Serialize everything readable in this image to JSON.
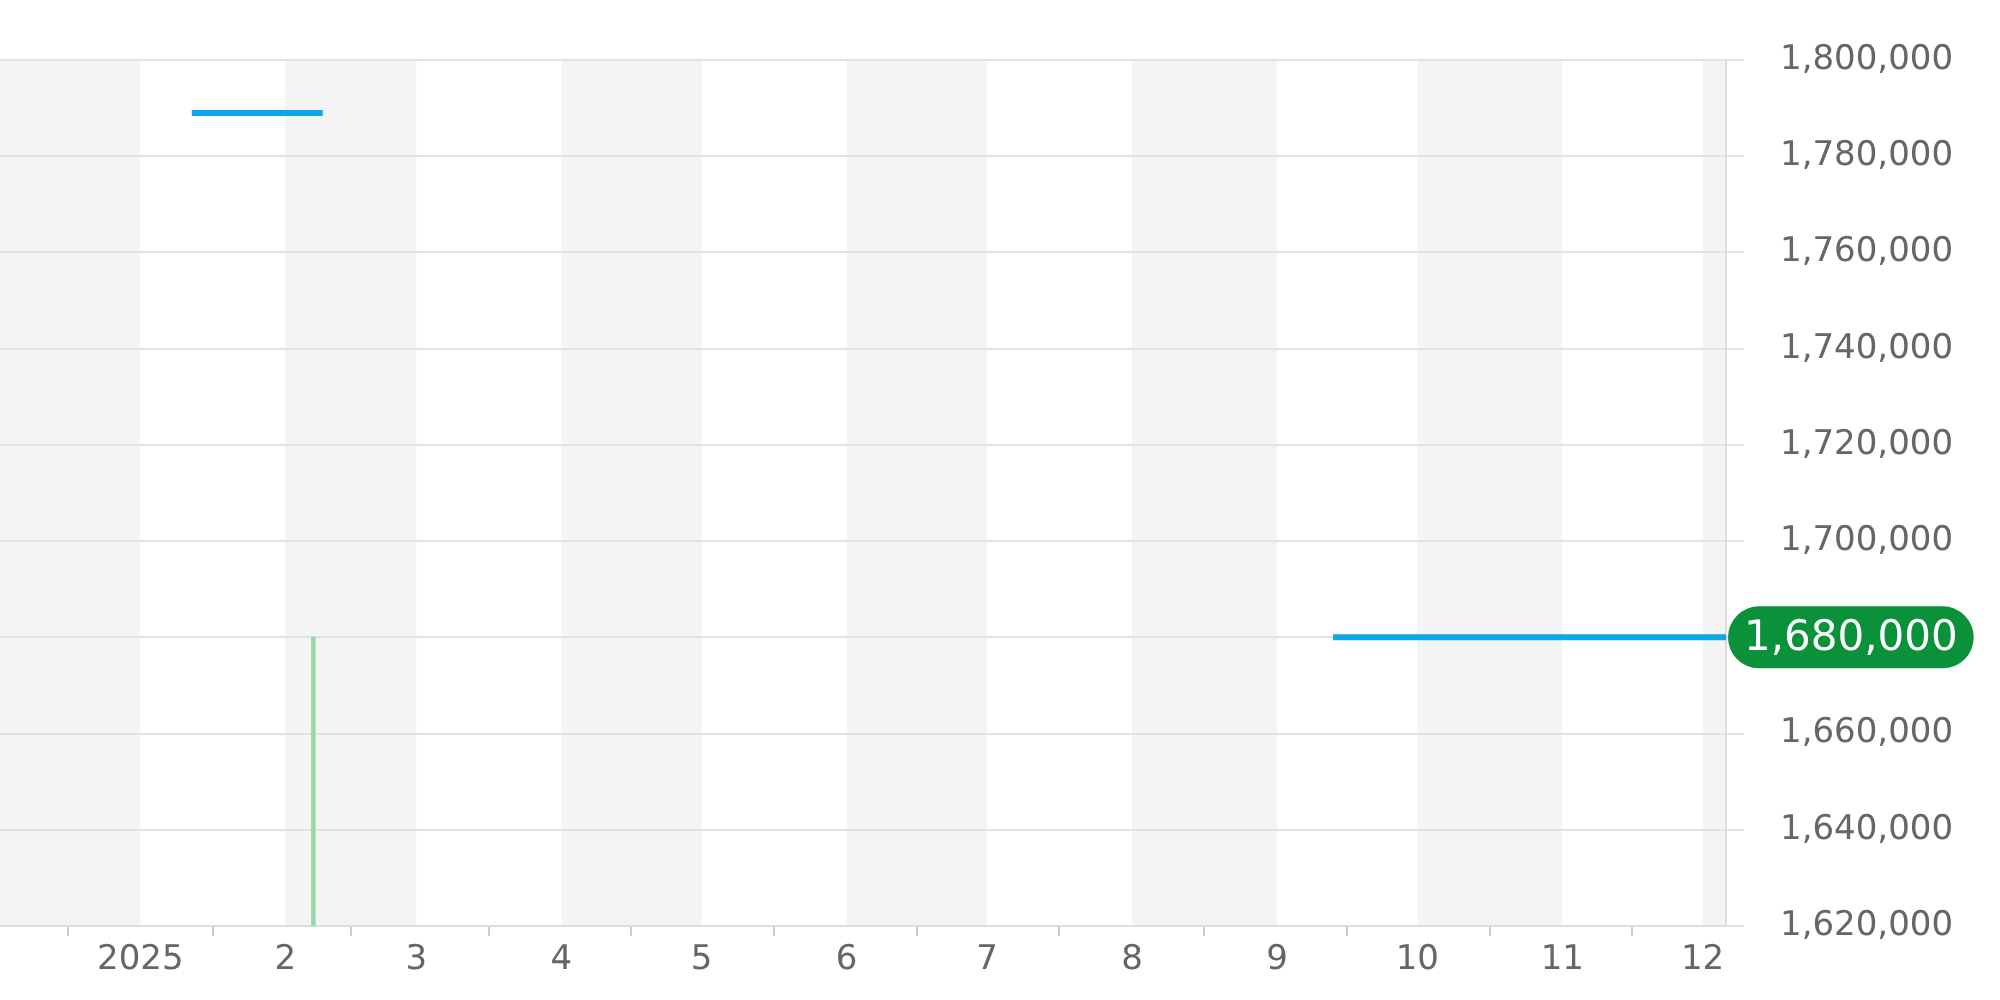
{
  "chart_data": {
    "type": "line",
    "series": [
      {
        "color": "#0ea5e9",
        "x": [
          "2025-01-12",
          "2025-02-09"
        ],
        "values": [
          1789000,
          1789000
        ]
      },
      {
        "color": "#0ea5e9",
        "x": [
          "2025-09-13",
          "2025-12-06"
        ],
        "values": [
          1680000,
          1680000
        ]
      },
      {
        "type": "bar",
        "color": "#9ad7a6",
        "x": [
          "2025-02-07"
        ],
        "values": [
          1680000
        ]
      }
    ],
    "xlim": [
      "2024-12-02",
      "2025-12-06"
    ],
    "xticks": [
      {
        "value": "2025-01-01",
        "label": "2025"
      },
      {
        "value": "2025-02-01",
        "label": "2"
      },
      {
        "value": "2025-03-01",
        "label": "3"
      },
      {
        "value": "2025-04-01",
        "label": "4"
      },
      {
        "value": "2025-05-01",
        "label": "5"
      },
      {
        "value": "2025-06-01",
        "label": "6"
      },
      {
        "value": "2025-07-01",
        "label": "7"
      },
      {
        "value": "2025-08-01",
        "label": "8"
      },
      {
        "value": "2025-09-01",
        "label": "9"
      },
      {
        "value": "2025-10-01",
        "label": "10"
      },
      {
        "value": "2025-11-01",
        "label": "11"
      },
      {
        "value": "2025-12-01",
        "label": "12"
      }
    ],
    "ylim": [
      1620000,
      1800000
    ],
    "yticks": [
      {
        "value": 1620000,
        "label": "1,620,000"
      },
      {
        "value": 1640000,
        "label": "1,640,000"
      },
      {
        "value": 1660000,
        "label": "1,660,000"
      },
      {
        "value": 1680000,
        "label": null
      },
      {
        "value": 1700000,
        "label": "1,700,000"
      },
      {
        "value": 1720000,
        "label": "1,720,000"
      },
      {
        "value": 1740000,
        "label": "1,740,000"
      },
      {
        "value": 1760000,
        "label": "1,760,000"
      },
      {
        "value": 1780000,
        "label": "1,780,000"
      },
      {
        "value": 1800000,
        "label": "1,800,000"
      }
    ],
    "grid": "y",
    "legend": false,
    "bands": [
      {
        "axis": "x",
        "from": "2024-12-02",
        "to": "2025-01-01",
        "color": "#f4f4f4"
      },
      {
        "axis": "x",
        "from": "2025-02-01",
        "to": "2025-03-01",
        "color": "#f4f4f4"
      },
      {
        "axis": "x",
        "from": "2025-04-01",
        "to": "2025-05-01",
        "color": "#f4f4f4"
      },
      {
        "axis": "x",
        "from": "2025-06-01",
        "to": "2025-07-01",
        "color": "#f4f4f4"
      },
      {
        "axis": "x",
        "from": "2025-08-01",
        "to": "2025-09-01",
        "color": "#f4f4f4"
      },
      {
        "axis": "x",
        "from": "2025-10-01",
        "to": "2025-11-01",
        "color": "#f4f4f4"
      },
      {
        "axis": "x",
        "from": "2025-12-01",
        "to": "2025-12-06",
        "color": "#f4f4f4"
      }
    ],
    "annotations": [
      {
        "text": "1,680,000",
        "x": "2025-12-06",
        "y": 1680000
      }
    ]
  }
}
